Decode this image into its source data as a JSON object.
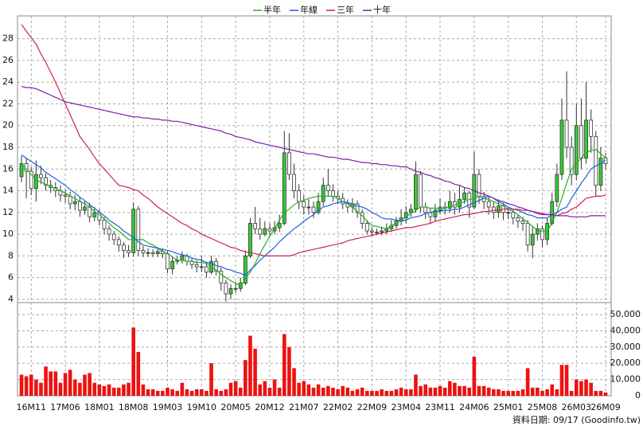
{
  "chart_data": {
    "type": "candlestick",
    "categories": [
      null,
      null,
      "16M11",
      null,
      null,
      null,
      null,
      null,
      null,
      "17M06",
      null,
      null,
      null,
      null,
      null,
      null,
      "18M01",
      null,
      null,
      null,
      null,
      null,
      null,
      "18M08",
      null,
      null,
      null,
      null,
      null,
      null,
      "19M03",
      null,
      null,
      null,
      null,
      null,
      null,
      "19M10",
      null,
      null,
      null,
      null,
      null,
      null,
      "20M05",
      null,
      null,
      null,
      null,
      null,
      null,
      "20M12",
      null,
      null,
      null,
      null,
      null,
      null,
      "21M07",
      null,
      null,
      null,
      null,
      null,
      null,
      "22M02",
      null,
      null,
      null,
      null,
      null,
      null,
      "22M09",
      null,
      null,
      null,
      null,
      null,
      null,
      "23M04",
      null,
      null,
      null,
      null,
      null,
      null,
      "23M11",
      null,
      null,
      null,
      null,
      null,
      null,
      "24M06",
      null,
      null,
      null,
      null,
      null,
      null,
      "25M01",
      null,
      null,
      null,
      null,
      null,
      null,
      "25M08",
      null,
      null,
      null,
      null,
      null,
      null,
      "26M03",
      null,
      null,
      null,
      null,
      null,
      "26M09"
    ],
    "open": [
      15.3,
      16.5,
      15.8,
      14.2,
      15.5,
      15.2,
      14.5,
      14.3,
      14.0,
      13.6,
      13.5,
      12.8,
      13.0,
      12.2,
      12.5,
      11.6,
      12.0,
      11.3,
      10.5,
      10.0,
      9.5,
      9.0,
      8.5,
      8.3,
      12.3,
      8.5,
      8.3,
      8.3,
      8.2,
      8.4,
      8.2,
      6.8,
      7.5,
      7.6,
      8.0,
      7.5,
      7.2,
      7.0,
      7.0,
      6.5,
      7.5,
      6.6,
      5.5,
      4.5,
      5.0,
      5.0,
      5.5,
      8.0,
      11.0,
      10.5,
      10.0,
      10.5,
      10.3,
      10.6,
      11.0,
      17.5,
      15.5,
      14.0,
      13.0,
      12.5,
      12.5,
      12.0,
      13.0,
      14.5,
      14.0,
      13.5,
      13.3,
      12.8,
      12.5,
      12.8,
      12.0,
      11.0,
      10.3,
      10.2,
      10.2,
      10.3,
      10.5,
      10.8,
      11.2,
      11.5,
      12.0,
      12.3,
      15.5,
      12.5,
      12.0,
      11.6,
      12.2,
      12.5,
      12.4,
      13.0,
      12.5,
      13.2,
      13.8,
      12.5,
      15.5,
      13.5,
      13.0,
      12.5,
      12.0,
      12.6,
      12.0,
      12.0,
      11.5,
      11.2,
      11.0,
      9.0,
      10.0,
      10.5,
      9.5,
      11.0,
      13.0,
      15.5,
      20.5,
      18.0,
      15.5,
      20.0,
      17.0,
      20.5,
      19.0,
      14.5,
      17.0
    ],
    "high": [
      17.2,
      17.0,
      16.2,
      16.8,
      16.3,
      15.6,
      15.0,
      14.8,
      14.5,
      14.1,
      13.9,
      13.6,
      13.4,
      13.0,
      12.9,
      12.5,
      12.3,
      11.6,
      10.8,
      10.3,
      9.8,
      9.3,
      9.0,
      12.9,
      12.6,
      8.9,
      8.7,
      8.6,
      8.8,
      8.7,
      8.4,
      7.9,
      8.0,
      8.4,
      8.2,
      7.8,
      7.6,
      8.0,
      7.4,
      8.0,
      7.8,
      6.9,
      5.8,
      5.4,
      5.6,
      6.0,
      8.5,
      11.5,
      12.5,
      11.5,
      11.2,
      11.0,
      11.2,
      11.8,
      19.5,
      19.3,
      16.5,
      14.6,
      13.6,
      13.2,
      13.0,
      13.8,
      15.2,
      16.0,
      14.6,
      14.0,
      13.8,
      13.2,
      13.3,
      13.1,
      12.3,
      11.3,
      10.6,
      10.5,
      10.7,
      11.0,
      11.3,
      11.6,
      12.3,
      12.6,
      12.8,
      16.7,
      15.8,
      12.9,
      12.4,
      12.8,
      13.3,
      13.0,
      14.0,
      13.8,
      14.5,
      14.3,
      14.0,
      17.6,
      16.0,
      13.9,
      13.5,
      13.0,
      13.2,
      12.9,
      12.5,
      12.3,
      11.8,
      11.6,
      11.3,
      10.7,
      11.0,
      10.8,
      11.5,
      13.8,
      16.5,
      22.5,
      25.0,
      19.0,
      22.0,
      22.5,
      24.0,
      21.5,
      19.5,
      18.0,
      17.5
    ],
    "low": [
      14.8,
      13.3,
      13.6,
      13.0,
      14.6,
      14.0,
      13.8,
      13.4,
      13.0,
      12.9,
      12.3,
      12.2,
      11.6,
      11.8,
      11.1,
      11.2,
      10.8,
      10.0,
      9.4,
      9.0,
      8.4,
      7.8,
      7.9,
      8.0,
      8.0,
      7.9,
      7.9,
      7.9,
      7.9,
      7.8,
      6.4,
      6.3,
      7.2,
      7.3,
      7.1,
      6.8,
      6.5,
      6.5,
      6.0,
      6.3,
      6.2,
      4.8,
      3.8,
      4.0,
      4.6,
      4.7,
      5.3,
      7.8,
      10.0,
      9.5,
      9.8,
      9.8,
      10.0,
      10.2,
      10.8,
      15.0,
      13.3,
      12.3,
      11.8,
      11.8,
      11.5,
      11.8,
      12.6,
      13.5,
      13.0,
      12.8,
      12.3,
      12.0,
      12.0,
      11.5,
      10.5,
      10.0,
      9.9,
      9.9,
      9.9,
      10.0,
      10.2,
      10.5,
      10.8,
      11.0,
      11.6,
      12.0,
      12.0,
      11.4,
      11.0,
      11.2,
      11.8,
      11.8,
      12.0,
      11.8,
      12.0,
      12.8,
      11.5,
      12.3,
      12.8,
      12.3,
      11.8,
      11.4,
      11.5,
      11.3,
      11.4,
      10.9,
      10.6,
      10.3,
      8.4,
      7.8,
      9.4,
      8.8,
      9.0,
      10.8,
      12.5,
      15.0,
      17.0,
      14.5,
      15.0,
      16.0,
      16.5,
      17.5,
      13.5,
      14.0,
      16.0
    ],
    "close": [
      16.5,
      15.8,
      14.2,
      15.5,
      15.2,
      14.5,
      14.3,
      14.0,
      13.6,
      13.5,
      12.8,
      13.0,
      12.2,
      12.5,
      11.6,
      12.0,
      11.3,
      10.5,
      10.0,
      9.5,
      9.0,
      8.5,
      8.3,
      12.3,
      8.5,
      8.3,
      8.3,
      8.2,
      8.4,
      8.2,
      6.8,
      7.5,
      7.6,
      8.0,
      7.5,
      7.2,
      7.0,
      7.0,
      6.5,
      7.5,
      6.6,
      5.5,
      4.5,
      5.0,
      5.0,
      5.5,
      8.0,
      11.0,
      10.5,
      10.0,
      10.5,
      10.3,
      10.6,
      11.0,
      17.5,
      15.5,
      14.0,
      13.0,
      12.5,
      12.5,
      12.0,
      13.0,
      14.5,
      14.0,
      13.5,
      13.3,
      12.8,
      12.5,
      12.8,
      12.0,
      11.0,
      10.3,
      10.2,
      10.2,
      10.3,
      10.5,
      10.8,
      11.2,
      11.5,
      12.0,
      12.3,
      15.5,
      12.5,
      12.0,
      11.6,
      12.2,
      12.5,
      12.4,
      13.0,
      12.5,
      13.2,
      13.8,
      12.5,
      15.5,
      13.5,
      13.0,
      12.5,
      12.0,
      12.6,
      12.0,
      12.0,
      11.5,
      11.2,
      11.0,
      9.0,
      10.0,
      10.5,
      9.5,
      11.0,
      13.0,
      15.5,
      20.5,
      18.0,
      15.5,
      20.0,
      17.0,
      20.5,
      19.0,
      14.5,
      17.0,
      16.5
    ],
    "up_color": "#33cc33",
    "down_color": "#ffffff",
    "ylim": [
      3.7,
      30.1
    ],
    "yticks": [
      4,
      6,
      8,
      10,
      12,
      14,
      16,
      18,
      20,
      22,
      24,
      26,
      28
    ],
    "grid": true,
    "series": [
      {
        "name": "半年",
        "color": "#22b322",
        "values": [
          16.5,
          16.0,
          15.5,
          15.0,
          14.8,
          14.6,
          14.4,
          14.2,
          14.0,
          13.8,
          13.5,
          13.3,
          13.0,
          12.8,
          12.5,
          12.1,
          11.8,
          11.4,
          11.0,
          10.6,
          10.3,
          9.9,
          9.5,
          9.5,
          9.5,
          9.5,
          9.2,
          9.0,
          8.7,
          8.4,
          8.2,
          7.9,
          7.6,
          7.6,
          7.5,
          7.5,
          7.4,
          7.4,
          7.3,
          7.0,
          6.7,
          6.3,
          6.0,
          5.7,
          5.5,
          5.2,
          5.9,
          6.5,
          7.3,
          8.2,
          9.0,
          9.8,
          10.5,
          11.3,
          12.0,
          12.3,
          12.7,
          13.0,
          13.1,
          13.3,
          13.4,
          13.5,
          13.5,
          13.5,
          13.5,
          13.3,
          13.0,
          12.8,
          12.5,
          12.1,
          11.7,
          11.2,
          10.8,
          10.7,
          10.6,
          10.5,
          10.8,
          11.0,
          11.3,
          11.6,
          11.9,
          12.2,
          12.5,
          12.5,
          12.4,
          12.4,
          12.3,
          12.4,
          12.5,
          12.7,
          12.8,
          13.0,
          13.2,
          13.3,
          13.5,
          13.3,
          13.2,
          13.0,
          12.8,
          12.6,
          12.3,
          12.1,
          11.8,
          11.4,
          11.1,
          10.7,
          10.3,
          10.3,
          10.2,
          11.1,
          12.0,
          13.3,
          14.7,
          16.0,
          16.5,
          17.0,
          17.5,
          17.7,
          17.8,
          17.4,
          17.0
        ]
      },
      {
        "name": "年線",
        "color": "#1f5fe0",
        "values": [
          17.3,
          17.0,
          16.7,
          16.4,
          16.1,
          15.7,
          15.4,
          15.1,
          14.8,
          14.5,
          14.1,
          13.8,
          13.4,
          13.1,
          12.7,
          12.4,
          12.0,
          11.7,
          11.3,
          11.0,
          10.7,
          10.3,
          10.0,
          9.7,
          9.3,
          9.0,
          8.9,
          8.8,
          8.7,
          8.6,
          8.5,
          8.4,
          8.2,
          8.1,
          8.0,
          7.8,
          7.7,
          7.6,
          7.4,
          7.3,
          7.1,
          7.0,
          6.8,
          6.7,
          6.5,
          6.4,
          6.2,
          6.7,
          7.1,
          7.6,
          8.0,
          8.4,
          8.8,
          9.3,
          9.7,
          10.1,
          10.5,
          10.8,
          11.2,
          11.5,
          11.8,
          12.2,
          12.5,
          12.6,
          12.8,
          12.9,
          13.0,
          12.9,
          12.8,
          12.6,
          12.5,
          12.3,
          12.0,
          11.8,
          11.5,
          11.4,
          11.4,
          11.3,
          11.2,
          11.3,
          11.5,
          11.6,
          11.7,
          11.9,
          12.0,
          12.1,
          12.1,
          12.2,
          12.2,
          12.3,
          12.3,
          12.5,
          12.7,
          12.9,
          13.1,
          13.3,
          13.5,
          13.3,
          13.0,
          12.8,
          12.5,
          12.3,
          12.2,
          12.0,
          11.8,
          11.7,
          11.5,
          11.5,
          11.5,
          11.8,
          12.0,
          12.3,
          12.5,
          13.3,
          14.0,
          14.7,
          15.3,
          16.0,
          16.3,
          16.5,
          16.8
        ]
      },
      {
        "name": "三年",
        "color": "#d0205a",
        "values": [
          29.3,
          28.7,
          28.1,
          27.5,
          26.6,
          25.8,
          24.9,
          24.0,
          23.0,
          22.0,
          21.0,
          20.0,
          19.0,
          18.4,
          17.8,
          17.1,
          16.5,
          16.0,
          15.5,
          15.0,
          14.5,
          14.4,
          14.3,
          14.1,
          14.0,
          13.6,
          13.3,
          12.9,
          12.5,
          12.2,
          11.9,
          11.6,
          11.3,
          11.0,
          10.8,
          10.5,
          10.3,
          10.0,
          9.8,
          9.6,
          9.4,
          9.2,
          9.0,
          8.8,
          8.7,
          8.5,
          8.4,
          8.3,
          8.2,
          8.1,
          8.0,
          8.0,
          8.0,
          8.0,
          8.0,
          8.0,
          8.1,
          8.3,
          8.4,
          8.5,
          8.6,
          8.7,
          8.8,
          8.9,
          9.0,
          9.1,
          9.2,
          9.4,
          9.5,
          9.6,
          9.7,
          9.8,
          9.9,
          10.0,
          10.1,
          10.2,
          10.3,
          10.4,
          10.5,
          10.6,
          10.6,
          10.7,
          10.8,
          10.9,
          11.0,
          11.2,
          11.3,
          11.4,
          11.5,
          11.6,
          11.7,
          11.8,
          11.8,
          11.9,
          12.0,
          12.1,
          12.1,
          12.2,
          12.2,
          12.3,
          12.3,
          12.3,
          12.3,
          12.2,
          12.2,
          12.1,
          12.0,
          11.9,
          11.8,
          11.8,
          11.7,
          11.9,
          12.0,
          12.3,
          12.5,
          12.9,
          13.3,
          13.4,
          13.5,
          13.5,
          13.6
        ]
      },
      {
        "name": "十年",
        "color": "#7a1fa8",
        "values": [
          23.6,
          23.5,
          23.5,
          23.4,
          23.2,
          23.0,
          22.8,
          22.6,
          22.4,
          22.2,
          22.1,
          22.0,
          21.9,
          21.8,
          21.7,
          21.6,
          21.5,
          21.4,
          21.3,
          21.2,
          21.1,
          21.0,
          20.9,
          20.8,
          20.8,
          20.7,
          20.7,
          20.6,
          20.6,
          20.5,
          20.5,
          20.4,
          20.4,
          20.3,
          20.2,
          20.1,
          20.0,
          19.9,
          19.8,
          19.7,
          19.6,
          19.5,
          19.3,
          19.2,
          19.0,
          18.9,
          18.8,
          18.7,
          18.5,
          18.4,
          18.3,
          18.2,
          18.1,
          18.0,
          17.9,
          17.8,
          17.7,
          17.6,
          17.5,
          17.4,
          17.4,
          17.3,
          17.2,
          17.1,
          17.1,
          17.0,
          16.9,
          16.9,
          16.8,
          16.7,
          16.6,
          16.6,
          16.5,
          16.5,
          16.4,
          16.4,
          16.3,
          16.3,
          16.2,
          16.2,
          16.0,
          15.8,
          15.7,
          15.5,
          15.4,
          15.2,
          15.1,
          14.9,
          14.8,
          14.6,
          14.5,
          14.3,
          14.2,
          14.0,
          13.8,
          13.7,
          13.5,
          13.3,
          13.1,
          13.0,
          12.8,
          12.7,
          12.5,
          12.4,
          12.2,
          12.1,
          11.9,
          11.8,
          11.8,
          11.8,
          11.7,
          11.7,
          11.7,
          11.6,
          11.6,
          11.6,
          11.6,
          11.7,
          11.7,
          11.7,
          11.7
        ]
      }
    ],
    "volume": {
      "color": "#ee1111",
      "ylim": [
        0,
        57400
      ],
      "yticks": [
        0,
        {
          "value": 10000,
          "label": "10,000"
        },
        {
          "value": 20000,
          "label": "20,000"
        },
        {
          "value": 30000,
          "label": "30,000"
        },
        {
          "value": 40000,
          "label": "40,000"
        },
        {
          "value": 50000,
          "label": "50,000"
        }
      ],
      "values": [
        13000,
        12000,
        13000,
        10000,
        8000,
        18000,
        15000,
        15000,
        8000,
        14000,
        16000,
        10000,
        8000,
        13000,
        14000,
        8000,
        7000,
        6000,
        7000,
        5000,
        5000,
        7000,
        8000,
        42000,
        27000,
        7000,
        4000,
        4000,
        3000,
        3000,
        5000,
        4000,
        3000,
        8000,
        4000,
        3000,
        4000,
        4000,
        3000,
        20000,
        4000,
        3000,
        4000,
        8000,
        9000,
        5000,
        22000,
        37000,
        29000,
        7000,
        9000,
        5000,
        10000,
        5000,
        38000,
        30000,
        17000,
        8000,
        9000,
        7000,
        5000,
        7000,
        5000,
        6000,
        5000,
        4000,
        6000,
        5000,
        3000,
        4000,
        5000,
        3000,
        3000,
        3000,
        4000,
        3000,
        3000,
        4000,
        5000,
        4000,
        4000,
        13000,
        6000,
        7000,
        5000,
        5000,
        6000,
        5000,
        9000,
        8000,
        6000,
        6000,
        5000,
        24000,
        6000,
        6000,
        5000,
        4000,
        4000,
        3000,
        3000,
        3000,
        3000,
        4000,
        17000,
        5000,
        5000,
        3000,
        4000,
        7000,
        4000,
        19000,
        19000,
        3000,
        10000,
        9000,
        10000,
        8000,
        3000,
        3000,
        2000
      ]
    },
    "footer": "資料日期: 09/17 (Goodinfo.tw)"
  }
}
